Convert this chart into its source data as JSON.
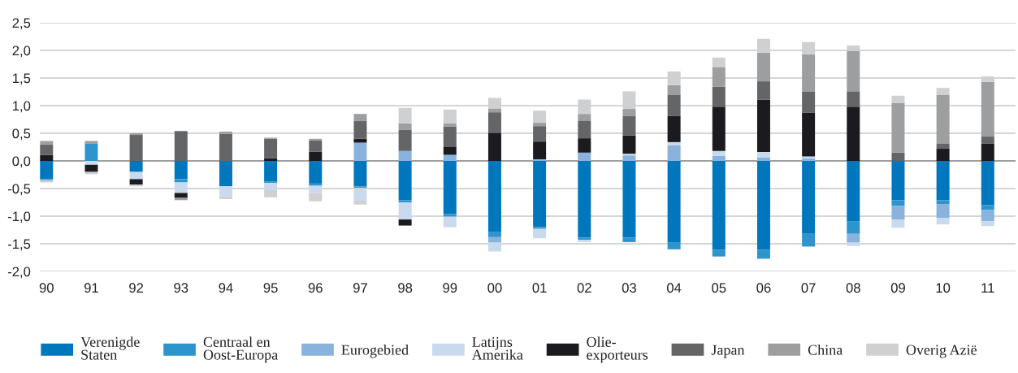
{
  "chart_data": {
    "type": "bar",
    "stacked": true,
    "categories": [
      "90",
      "91",
      "92",
      "93",
      "94",
      "95",
      "96",
      "97",
      "98",
      "99",
      "00",
      "01",
      "02",
      "03",
      "04",
      "05",
      "06",
      "07",
      "08",
      "09",
      "10",
      "11"
    ],
    "series": [
      {
        "name": "Verenigde\nStaten",
        "color": "#0077bd",
        "values": [
          -0.33,
          null,
          -0.2,
          -0.33,
          -0.46,
          -0.37,
          -0.41,
          -0.46,
          -0.71,
          -0.96,
          -1.29,
          -1.2,
          -1.39,
          -1.39,
          -1.48,
          -1.61,
          -1.61,
          -1.32,
          -1.1,
          -0.71,
          -0.71,
          -0.8
        ]
      },
      {
        "name": "Centraal en\nOost-Europa",
        "color": "#2e94cc",
        "values": [
          -0.02,
          0.31,
          null,
          -0.06,
          null,
          -0.03,
          -0.04,
          -0.03,
          -0.04,
          -0.05,
          -0.09,
          -0.03,
          -0.04,
          -0.08,
          -0.12,
          -0.12,
          -0.16,
          -0.23,
          -0.22,
          -0.1,
          -0.07,
          -0.09
        ]
      },
      {
        "name": "Eurogebied",
        "color": "#89b3dc",
        "values": [
          null,
          null,
          null,
          null,
          null,
          null,
          null,
          0.33,
          0.18,
          0.11,
          -0.1,
          0.03,
          0.15,
          0.1,
          0.28,
          0.09,
          0.06,
          0.05,
          -0.16,
          -0.25,
          -0.25,
          -0.2
        ]
      },
      {
        "name": "Latijns\nAmerika",
        "color": "#c9daee",
        "values": [
          null,
          -0.07,
          -0.13,
          -0.19,
          -0.18,
          -0.13,
          -0.13,
          -0.23,
          -0.31,
          -0.19,
          -0.16,
          -0.17,
          -0.04,
          0.03,
          0.06,
          0.09,
          0.1,
          0.03,
          -0.06,
          -0.15,
          -0.12,
          -0.09
        ]
      },
      {
        "name": "Olie-\nexporteurs",
        "color": "#1b1a1e",
        "values": [
          0.11,
          -0.13,
          -0.1,
          -0.09,
          null,
          0.05,
          0.17,
          0.07,
          -0.11,
          0.15,
          0.51,
          0.32,
          0.26,
          0.33,
          0.47,
          0.8,
          0.95,
          0.79,
          0.98,
          null,
          0.22,
          0.31
        ]
      },
      {
        "name": "Japan",
        "color": "#646566",
        "values": [
          0.19,
          null,
          0.47,
          0.54,
          0.49,
          0.35,
          0.2,
          0.32,
          0.38,
          0.36,
          0.37,
          0.28,
          0.32,
          0.35,
          0.39,
          0.36,
          0.33,
          0.38,
          0.28,
          0.15,
          0.09,
          0.13
        ]
      },
      {
        "name": "China",
        "color": "#9d9e9f",
        "values": [
          0.06,
          0.05,
          0.03,
          -0.04,
          0.04,
          0.02,
          0.03,
          0.13,
          0.12,
          0.06,
          0.07,
          0.06,
          0.12,
          0.13,
          0.17,
          0.36,
          0.52,
          0.68,
          0.73,
          0.9,
          0.89,
          0.99
        ]
      },
      {
        "name": "Overig Azië",
        "color": "#cfd0d2",
        "values": [
          -0.04,
          -0.04,
          -0.03,
          null,
          -0.05,
          -0.13,
          -0.15,
          -0.07,
          0.28,
          0.25,
          0.19,
          0.22,
          0.26,
          0.32,
          0.25,
          0.17,
          0.25,
          0.22,
          0.1,
          0.13,
          0.12,
          0.1
        ]
      }
    ],
    "ylim": [
      -2.0,
      2.5
    ],
    "yticks": [
      {
        "value": -2.0,
        "label": "-2,0"
      },
      {
        "value": -1.5,
        "label": "-1,5"
      },
      {
        "value": -1.0,
        "label": "-1,0"
      },
      {
        "value": -0.5,
        "label": "-0,5"
      },
      {
        "value": 0.0,
        "label": "0,0"
      },
      {
        "value": 0.5,
        "label": "0,5"
      },
      {
        "value": 1.0,
        "label": "1,0"
      },
      {
        "value": 1.5,
        "label": "1,5"
      },
      {
        "value": 2.0,
        "label": "2,0"
      },
      {
        "value": 2.5,
        "label": "2,5"
      }
    ],
    "grid": "y",
    "legend": "bottom"
  }
}
